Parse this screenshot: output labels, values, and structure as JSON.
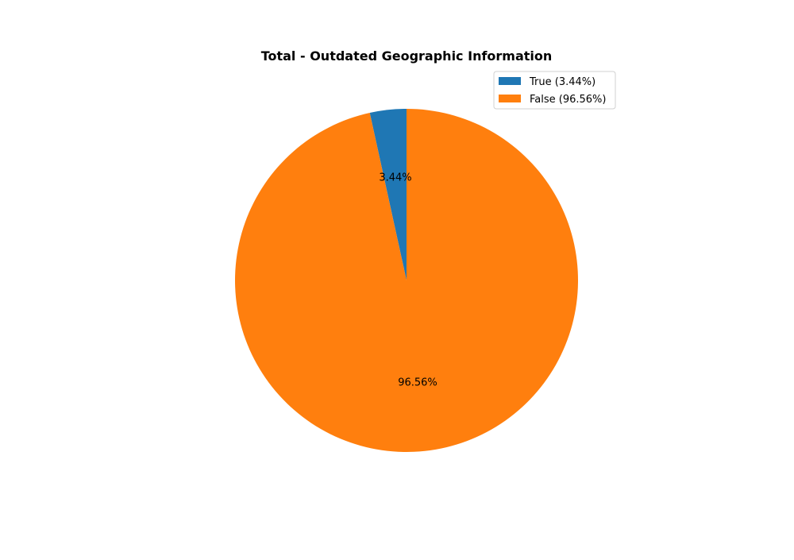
{
  "chart_data": {
    "type": "pie",
    "title": "Total - Outdated Geographic Information",
    "slices": [
      {
        "name": "True",
        "value": 3.44,
        "label": "3.44%",
        "legend_label": "True (3.44%)",
        "color": "#1f77b4"
      },
      {
        "name": "False",
        "value": 96.56,
        "label": "96.56%",
        "legend_label": "False (96.56%)",
        "color": "#ff7f0e"
      }
    ],
    "start_angle_deg": 90,
    "direction": "counterclockwise",
    "legend_position": "top-right"
  }
}
